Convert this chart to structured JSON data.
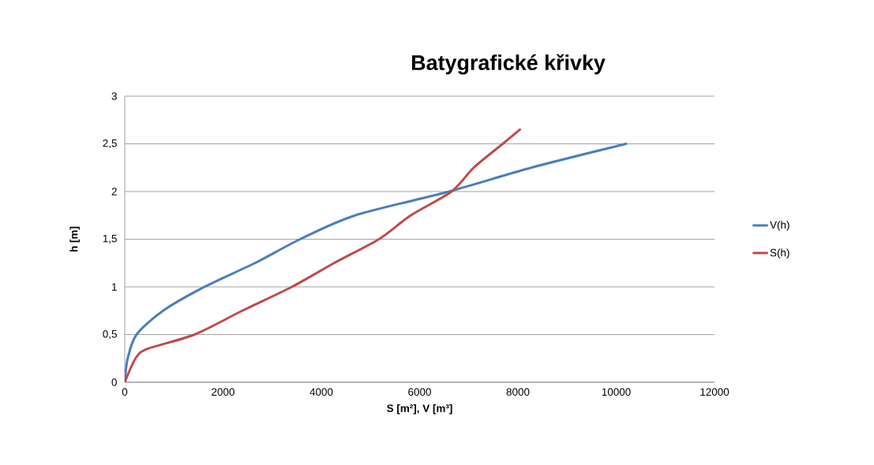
{
  "chart_data": {
    "type": "line",
    "title": "Batygrafické křivky",
    "xlabel": "S  [m²], V [m³]",
    "ylabel": "h [m]",
    "series": [
      {
        "name": "V(h)",
        "color": "#4a7ebb",
        "x": [
          0,
          60,
          240,
          780,
          1620,
          2650,
          3570,
          4690,
          6600,
          8270,
          10200
        ],
        "values": [
          0,
          0.25,
          0.5,
          0.75,
          1.0,
          1.25,
          1.5,
          1.75,
          2.0,
          2.25,
          2.5
        ]
      },
      {
        "name": "S(h)",
        "color": "#be4b48",
        "x": [
          0,
          220,
          460,
          1420,
          2390,
          3400,
          4260,
          5170,
          5820,
          6650,
          7100,
          7690,
          8040
        ],
        "values": [
          0,
          0.25,
          0.35,
          0.5,
          0.75,
          1.0,
          1.25,
          1.5,
          1.75,
          2.0,
          2.25,
          2.5,
          2.65
        ]
      }
    ],
    "xlim": [
      0,
      12000
    ],
    "xticks": [
      0,
      2000,
      4000,
      6000,
      8000,
      10000,
      12000
    ],
    "ylim": [
      0,
      3
    ],
    "yticks": [
      0,
      {
        "value": 0.5,
        "label": "0,5"
      },
      1,
      {
        "value": 1.5,
        "label": "1,5"
      },
      2,
      {
        "value": 2.5,
        "label": "2,5"
      },
      3
    ],
    "grid": "y",
    "legend": "right",
    "marker": "none",
    "line_style": "solid"
  }
}
